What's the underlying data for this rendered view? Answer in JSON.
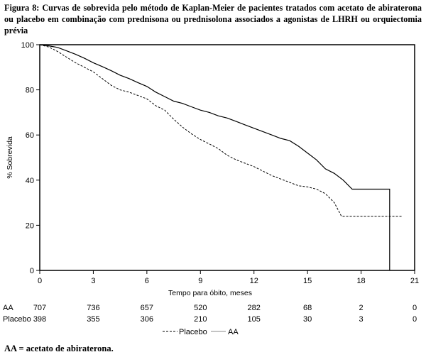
{
  "caption": "Figura 8: Curvas de sobrevida pelo método de Kaplan-Meier de pacientes tratados com acetato de abiraterona ou placebo em combinação com prednisona ou prednisolona associados a agonistas de LHRH ou orquiectomia prévia",
  "footnote": "AA = acetato de abiraterona.",
  "chart_data": {
    "type": "line",
    "xlabel": "Tempo para óbito, meses",
    "ylabel": "% Sobrevida",
    "xlim": [
      0,
      21
    ],
    "ylim": [
      0,
      100
    ],
    "xticks": [
      0,
      3,
      6,
      9,
      12,
      15,
      18,
      21
    ],
    "yticks": [
      0,
      20,
      40,
      60,
      80,
      100
    ],
    "grid": false,
    "legend_position": "bottom-center",
    "series": [
      {
        "name": "AA",
        "style": "solid",
        "color": "#000000",
        "x": [
          0,
          0.5,
          1,
          1.5,
          2,
          2.5,
          3,
          3.5,
          4,
          4.5,
          5,
          5.5,
          6,
          6.5,
          7,
          7.5,
          8,
          8.5,
          9,
          9.5,
          10,
          10.5,
          11,
          11.5,
          12,
          12.5,
          13,
          13.5,
          14,
          14.5,
          15,
          15.5,
          16,
          16.5,
          17,
          17.5,
          18,
          18.5,
          19,
          19.6,
          19.6
        ],
        "y": [
          100,
          99.5,
          98.8,
          97.3,
          95.8,
          94,
          92,
          90.3,
          88.5,
          86.5,
          85,
          83.2,
          81.5,
          79,
          77,
          75,
          74,
          72.5,
          71,
          70,
          68.5,
          67.5,
          66,
          64.5,
          63,
          61.5,
          60,
          58.5,
          57.5,
          55,
          52,
          49,
          45,
          43,
          40,
          36,
          36,
          36,
          36,
          36,
          0
        ]
      },
      {
        "name": "Placebo",
        "style": "dashed",
        "color": "#000000",
        "x": [
          0,
          0.5,
          1,
          1.5,
          2,
          2.5,
          3,
          3.5,
          4,
          4.5,
          5,
          5.5,
          6,
          6.5,
          7,
          7.5,
          8,
          8.5,
          9,
          9.5,
          10,
          10.5,
          11,
          11.5,
          12,
          12.5,
          13,
          13.5,
          14,
          14.5,
          15,
          15.5,
          16,
          16.5,
          16.9,
          17.5,
          18,
          19,
          19.6,
          20.3
        ],
        "y": [
          100,
          99,
          97,
          94.5,
          92,
          90,
          88,
          85,
          82,
          80,
          79,
          77.5,
          76,
          73,
          71,
          67,
          63.5,
          60.5,
          58,
          56,
          54,
          51,
          49,
          47.5,
          46,
          44,
          42,
          40.5,
          39,
          37.5,
          37,
          36,
          34,
          30,
          24,
          24,
          24,
          24,
          24,
          24
        ]
      }
    ]
  },
  "risk_table": {
    "rows": [
      {
        "label": "AA",
        "counts": [
          "707",
          "736",
          "657",
          "520",
          "282",
          "68",
          "2",
          "0"
        ]
      },
      {
        "label": "Placebo",
        "counts": [
          "398",
          "355",
          "306",
          "210",
          "105",
          "30",
          "3",
          "0"
        ]
      }
    ]
  },
  "legend": {
    "placebo_label": "Placebo",
    "aa_label": "AA"
  }
}
